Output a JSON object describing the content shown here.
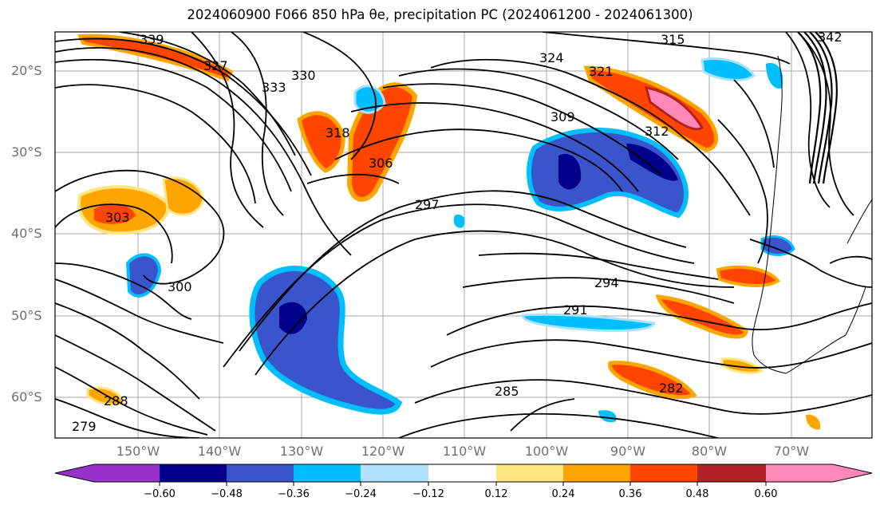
{
  "title": "2024060900 F066 850 hPa θe, precipitation PC (2024061200 - 2024061300)",
  "map": {
    "lat_axis_labels": [
      "20°S",
      "30°S",
      "40°S",
      "50°S",
      "60°S"
    ],
    "lon_axis_labels": [
      "150°W",
      "140°W",
      "130°W",
      "120°W",
      "110°W",
      "100°W",
      "90°W",
      "80°W",
      "70°W"
    ],
    "contour_labels": [
      "339",
      "342",
      "333",
      "330",
      "327",
      "324",
      "321",
      "318",
      "315",
      "312",
      "309",
      "306",
      "303",
      "300",
      "297",
      "294",
      "291",
      "288",
      "285",
      "282",
      "279"
    ],
    "grid": true,
    "coastline": "South America (southern Andes, Patagonia)"
  },
  "colorbar": {
    "tick_labels": [
      "−0.60",
      "−0.48",
      "−0.36",
      "−0.24",
      "−0.12",
      "0.12",
      "0.24",
      "0.36",
      "0.48",
      "0.60"
    ],
    "colors": [
      "#9932cc",
      "#00008b",
      "#3a55cc",
      "#00bfff",
      "#aee0ff",
      "#ffffff",
      "#ffe680",
      "#ffa500",
      "#ff4500",
      "#b22222",
      "#ff88b8"
    ],
    "extend": "both"
  }
}
